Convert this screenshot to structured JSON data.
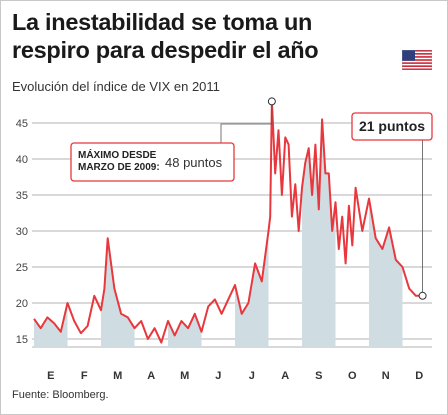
{
  "title": "La inestabilidad se toma un respiro para despedir el año",
  "subtitle": "Evolución del índice de VIX en 2011",
  "source": "Fuente: Bloomberg.",
  "flag_icon": "us-flag-icon",
  "colors": {
    "line": "#e8383d",
    "area": "#cfdde3",
    "grid": "#9a9a9a",
    "callout_border": "#e8383d"
  },
  "annotations": {
    "max_label": "MÁXIMO DESDE\nMARZO DE 2009:",
    "max_value": "48 puntos",
    "last_label": "21 puntos"
  },
  "chart_data": {
    "type": "area",
    "title": "La inestabilidad se toma un respiro para despedir el año",
    "subtitle": "Evolución del índice de VIX en 2011",
    "xlabel": "",
    "ylabel": "",
    "ylim": [
      12,
      48
    ],
    "yticks": [
      15,
      20,
      25,
      30,
      35,
      40,
      45
    ],
    "months": [
      "E",
      "F",
      "M",
      "A",
      "M",
      "J",
      "J",
      "A",
      "S",
      "O",
      "N",
      "D"
    ],
    "grid": "horizontal",
    "x": [
      0.0,
      0.2,
      0.4,
      0.6,
      0.8,
      1.0,
      1.2,
      1.4,
      1.6,
      1.8,
      2.0,
      2.1,
      2.2,
      2.4,
      2.6,
      2.8,
      3.0,
      3.2,
      3.4,
      3.6,
      3.8,
      4.0,
      4.2,
      4.4,
      4.6,
      4.8,
      5.0,
      5.2,
      5.4,
      5.6,
      5.8,
      6.0,
      6.2,
      6.4,
      6.6,
      6.8,
      7.0,
      7.05,
      7.1,
      7.2,
      7.3,
      7.4,
      7.5,
      7.6,
      7.7,
      7.8,
      7.9,
      8.0,
      8.1,
      8.2,
      8.3,
      8.4,
      8.5,
      8.6,
      8.7,
      8.8,
      8.9,
      9.0,
      9.1,
      9.2,
      9.3,
      9.4,
      9.5,
      9.6,
      9.8,
      10.0,
      10.2,
      10.4,
      10.6,
      10.8,
      11.0,
      11.2,
      11.4,
      11.6
    ],
    "values": [
      17.8,
      16.5,
      18.0,
      17.2,
      16.0,
      20.0,
      17.5,
      15.8,
      16.8,
      21.0,
      19.0,
      22.0,
      29.0,
      22.0,
      18.5,
      18.0,
      16.5,
      17.5,
      15.0,
      16.5,
      14.5,
      17.5,
      15.5,
      17.5,
      16.5,
      18.5,
      16.0,
      19.5,
      20.5,
      18.5,
      20.5,
      22.5,
      18.5,
      20.0,
      25.5,
      23.0,
      30.0,
      32.0,
      48.0,
      38.0,
      44.0,
      35.0,
      43.0,
      42.0,
      32.0,
      36.5,
      30.0,
      36.0,
      39.5,
      41.5,
      35.0,
      42.0,
      33.0,
      45.5,
      38.0,
      38.0,
      30.0,
      34.0,
      27.5,
      32.0,
      25.5,
      33.5,
      28.0,
      36.0,
      30.0,
      34.5,
      29.0,
      27.5,
      30.5,
      26.0,
      25.0,
      22.0,
      21.0,
      21.0
    ]
  }
}
